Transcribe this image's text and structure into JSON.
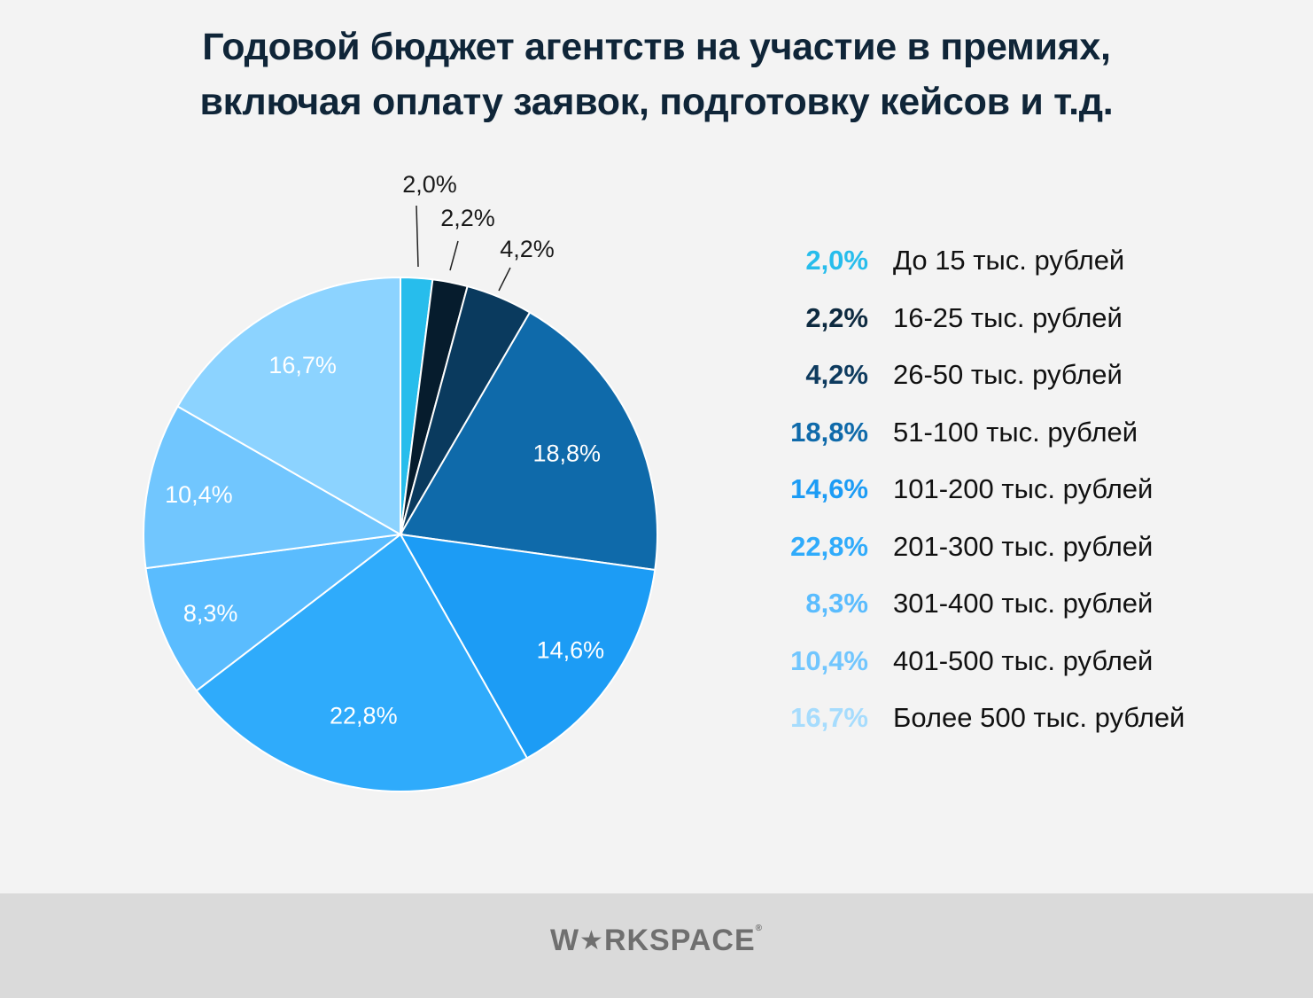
{
  "title": {
    "line1": "Годовой бюджет агентств на участие в премиях,",
    "line2": "включая оплату заявок, подготовку кейсов и т.д."
  },
  "chart_data": {
    "type": "pie",
    "title": "Годовой бюджет агентств на участие в премиях, включая оплату заявок, подготовку кейсов и т.д.",
    "categories": [
      "До 15 тыс. рублей",
      "16-25 тыс. рублей",
      "26-50 тыс. рублей",
      "51-100 тыс. рублей",
      "101-200 тыс. рублей",
      "201-300 тыс. рублей",
      "301-400 тыс. рублей",
      "401-500 тыс. рублей",
      "Более 500 тыс. рублей"
    ],
    "values": [
      2.0,
      2.2,
      4.2,
      18.8,
      14.6,
      22.8,
      8.3,
      10.4,
      16.7
    ],
    "value_labels": [
      "2,0%",
      "2,2%",
      "4,2%",
      "18,8%",
      "14,6%",
      "22,8%",
      "8,3%",
      "10,4%",
      "16,7%"
    ],
    "colors": [
      "#27bdec",
      "#061c2d",
      "#0a3a5e",
      "#0f6aaa",
      "#1c9cf5",
      "#2fabfb",
      "#5abcfe",
      "#71c6fe",
      "#8cd3ff"
    ],
    "legend_text_colors": [
      "#27bdec",
      "#0d2a40",
      "#0d3a5e",
      "#0f6aaa",
      "#1c9cf5",
      "#2fabfb",
      "#5abcfe",
      "#71c6fe",
      "#a6dcfd"
    ],
    "legend_position": "right"
  },
  "legend": [
    {
      "pct": "2,0%",
      "label": "До 15 тыс. рублей"
    },
    {
      "pct": "2,2%",
      "label": "16-25 тыс. рублей"
    },
    {
      "pct": "4,2%",
      "label": "26-50 тыс. рублей"
    },
    {
      "pct": "18,8%",
      "label": "51-100 тыс. рублей"
    },
    {
      "pct": "14,6%",
      "label": "101-200 тыс. рублей"
    },
    {
      "pct": "22,8%",
      "label": "201-300 тыс. рублей"
    },
    {
      "pct": "8,3%",
      "label": "301-400 тыс. рублей"
    },
    {
      "pct": "10,4%",
      "label": "401-500 тыс. рублей"
    },
    {
      "pct": "16,7%",
      "label": "Более 500 тыс. рублей"
    }
  ],
  "footer": {
    "logo_pre": "W",
    "logo_post": "RKSPACE",
    "logo_icon": "star-icon"
  }
}
